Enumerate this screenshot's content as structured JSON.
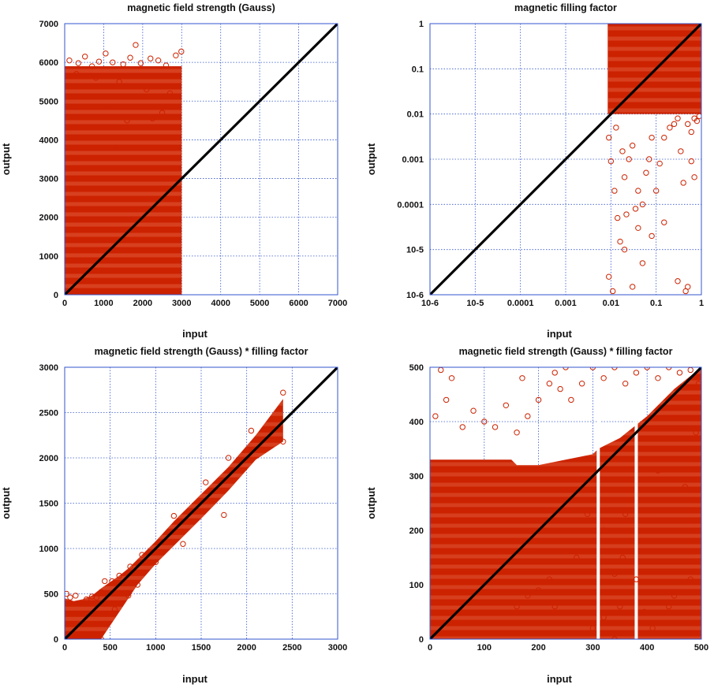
{
  "colors": {
    "marker": "#cc2200",
    "identity": "#000000",
    "grid": "#3355cc",
    "frame": "#3355cc"
  },
  "chart_data": [
    {
      "type": "scatter",
      "title": "magnetic field strength (Gauss)",
      "xlabel": "input",
      "ylabel": "output",
      "xlim": [
        0,
        7000
      ],
      "ylim": [
        0,
        7000
      ],
      "xticks": [
        0,
        1000,
        2000,
        3000,
        4000,
        5000,
        6000,
        7000
      ],
      "yticks": [
        0,
        1000,
        2000,
        3000,
        4000,
        5000,
        6000,
        7000
      ],
      "xtick_labels": [
        "0",
        "1000",
        "2000",
        "3000",
        "4000",
        "5000",
        "6000",
        "7000"
      ],
      "ytick_labels": [
        "0",
        "1000",
        "2000",
        "3000",
        "4000",
        "5000",
        "6000",
        "7000"
      ],
      "log": false,
      "grid": true,
      "identity_line": true,
      "dense_region": {
        "x": [
          0,
          3000
        ],
        "y": [
          0,
          5900
        ]
      },
      "series": [
        {
          "points": [
            [
              120,
              6050
            ],
            [
              350,
              5980
            ],
            [
              520,
              6150
            ],
            [
              700,
              5900
            ],
            [
              880,
              6020
            ],
            [
              1050,
              6230
            ],
            [
              1230,
              6000
            ],
            [
              1500,
              5950
            ],
            [
              1680,
              6120
            ],
            [
              1820,
              6450
            ],
            [
              1950,
              5980
            ],
            [
              2200,
              6100
            ],
            [
              2400,
              6050
            ],
            [
              2600,
              5920
            ],
            [
              2850,
              6180
            ],
            [
              2990,
              6280
            ],
            [
              300,
              5700
            ],
            [
              800,
              5600
            ],
            [
              1400,
              5500
            ],
            [
              2100,
              5300
            ],
            [
              2700,
              5200
            ],
            [
              1100,
              4850
            ],
            [
              1600,
              4500
            ],
            [
              2500,
              4700
            ],
            [
              2250,
              4550
            ],
            [
              1300,
              3800
            ]
          ]
        }
      ]
    },
    {
      "type": "scatter",
      "title": "magnetic filling factor",
      "xlabel": "input",
      "ylabel": "output",
      "xlim": [
        1e-06,
        1
      ],
      "ylim": [
        1e-06,
        1
      ],
      "xticks": [
        1e-06,
        1e-05,
        0.0001,
        0.001,
        0.01,
        0.1,
        1
      ],
      "yticks": [
        1e-06,
        1e-05,
        0.0001,
        0.001,
        0.01,
        0.1,
        1
      ],
      "xtick_labels": [
        "10-6",
        "10-5",
        "0.0001",
        "0.001",
        "0.01",
        "0.1",
        "1"
      ],
      "ytick_labels": [
        "10-6",
        "10-5",
        "0.0001",
        "0.001",
        "0.01",
        "0.1",
        "1"
      ],
      "log": true,
      "grid": true,
      "identity_line": true,
      "dense_region": {
        "x": [
          0.0085,
          1
        ],
        "y": [
          0.01,
          1
        ]
      },
      "series": [
        {
          "points": [
            [
              0.009,
              0.003
            ],
            [
              0.01,
              0.0009
            ],
            [
              0.012,
              0.0002
            ],
            [
              0.014,
              5e-05
            ],
            [
              0.016,
              1.5e-05
            ],
            [
              0.009,
              2.5e-06
            ],
            [
              0.011,
              1.2e-06
            ],
            [
              0.02,
              0.0004
            ],
            [
              0.025,
              0.001
            ],
            [
              0.03,
              0.002
            ],
            [
              0.035,
              8e-05
            ],
            [
              0.04,
              3e-05
            ],
            [
              0.05,
              5e-06
            ],
            [
              0.06,
              0.0005
            ],
            [
              0.07,
              0.001
            ],
            [
              0.08,
              0.003
            ],
            [
              0.1,
              0.0002
            ],
            [
              0.12,
              0.0008
            ],
            [
              0.15,
              0.003
            ],
            [
              0.2,
              0.005
            ],
            [
              0.25,
              0.006
            ],
            [
              0.3,
              0.008
            ],
            [
              0.35,
              0.0015
            ],
            [
              0.4,
              0.0003
            ],
            [
              0.5,
              0.006
            ],
            [
              0.6,
              0.004
            ],
            [
              0.7,
              0.008
            ],
            [
              0.8,
              0.007
            ],
            [
              0.9,
              0.009
            ],
            [
              0.02,
              1e-05
            ],
            [
              0.03,
              1.5e-06
            ],
            [
              0.05,
              0.0001
            ],
            [
              0.08,
              2e-05
            ],
            [
              0.15,
              4e-05
            ],
            [
              0.3,
              2e-06
            ],
            [
              0.45,
              1.2e-06
            ],
            [
              0.5,
              1.5e-06
            ],
            [
              0.013,
              0.005
            ],
            [
              0.018,
              0.0015
            ],
            [
              0.022,
              6e-05
            ],
            [
              0.04,
              0.0002
            ],
            [
              0.6,
              0.0009
            ],
            [
              0.7,
              0.0004
            ]
          ]
        }
      ]
    },
    {
      "type": "scatter",
      "title": "magnetic field strength (Gauss) * filling factor",
      "xlabel": "input",
      "ylabel": "output",
      "xlim": [
        0,
        3000
      ],
      "ylim": [
        0,
        3000
      ],
      "xticks": [
        0,
        500,
        1000,
        1500,
        2000,
        2500,
        3000
      ],
      "yticks": [
        0,
        500,
        1000,
        1500,
        2000,
        2500,
        3000
      ],
      "xtick_labels": [
        "0",
        "500",
        "1000",
        "1500",
        "2000",
        "2500",
        "3000"
      ],
      "ytick_labels": [
        "0",
        "500",
        "1000",
        "1500",
        "2000",
        "2500",
        "3000"
      ],
      "log": false,
      "grid": true,
      "identity_line": true,
      "band": {
        "x": [
          0,
          100,
          200,
          300,
          400,
          500,
          600,
          700,
          800,
          1000,
          1200,
          1500,
          1800,
          2100,
          2400
        ],
        "lower": [
          0,
          0,
          0,
          0,
          0,
          150,
          300,
          450,
          600,
          830,
          1030,
          1330,
          1640,
          1980,
          2180
        ],
        "upper": [
          450,
          420,
          440,
          480,
          560,
          630,
          700,
          780,
          880,
          1080,
          1300,
          1600,
          1900,
          2250,
          2650
        ]
      },
      "series": [
        {
          "points": [
            [
              20,
              500
            ],
            [
              60,
              460
            ],
            [
              120,
              480
            ],
            [
              240,
              440
            ],
            [
              300,
              470
            ],
            [
              350,
              460
            ],
            [
              400,
              520
            ],
            [
              440,
              640
            ],
            [
              520,
              640
            ],
            [
              600,
              700
            ],
            [
              720,
              800
            ],
            [
              850,
              930
            ],
            [
              1200,
              1360
            ],
            [
              1550,
              1730
            ],
            [
              1800,
              2000
            ],
            [
              2050,
              2300
            ],
            [
              2400,
              2720
            ],
            [
              2400,
              2180
            ],
            [
              1750,
              1370
            ],
            [
              1300,
              1050
            ],
            [
              1000,
              850
            ],
            [
              700,
              480
            ],
            [
              550,
              330
            ],
            [
              800,
              600
            ],
            [
              400,
              0
            ]
          ]
        }
      ]
    },
    {
      "type": "scatter",
      "title": "magnetic field strength (Gauss) * filling factor",
      "xlabel": "input",
      "ylabel": "output",
      "xlim": [
        0,
        500
      ],
      "ylim": [
        0,
        500
      ],
      "xticks": [
        0,
        100,
        200,
        300,
        400,
        500
      ],
      "yticks": [
        0,
        100,
        200,
        300,
        400,
        500
      ],
      "xtick_labels": [
        "0",
        "100",
        "200",
        "300",
        "400",
        "500"
      ],
      "ytick_labels": [
        "0",
        "100",
        "200",
        "300",
        "400",
        "500"
      ],
      "log": false,
      "grid": true,
      "identity_line": true,
      "band": {
        "x": [
          0,
          50,
          100,
          150,
          160,
          200,
          250,
          300,
          310,
          350,
          400,
          450,
          500
        ],
        "lower": [
          0,
          0,
          0,
          0,
          0,
          0,
          0,
          0,
          0,
          0,
          0,
          0,
          0
        ],
        "upper": [
          330,
          330,
          330,
          330,
          320,
          320,
          330,
          340,
          350,
          370,
          410,
          460,
          500
        ]
      },
      "gaps_x": [
        310,
        380
      ],
      "series": [
        {
          "points": [
            [
              10,
              410
            ],
            [
              20,
              495
            ],
            [
              30,
              440
            ],
            [
              40,
              480
            ],
            [
              60,
              390
            ],
            [
              80,
              420
            ],
            [
              100,
              400
            ],
            [
              120,
              390
            ],
            [
              140,
              430
            ],
            [
              160,
              380
            ],
            [
              180,
              410
            ],
            [
              200,
              440
            ],
            [
              220,
              470
            ],
            [
              240,
              460
            ],
            [
              250,
              500
            ],
            [
              260,
              440
            ],
            [
              280,
              470
            ],
            [
              300,
              500
            ],
            [
              320,
              480
            ],
            [
              340,
              500
            ],
            [
              360,
              470
            ],
            [
              380,
              490
            ],
            [
              400,
              500
            ],
            [
              420,
              480
            ],
            [
              440,
              500
            ],
            [
              460,
              490
            ],
            [
              480,
              495
            ],
            [
              495,
              470
            ],
            [
              380,
              110
            ],
            [
              350,
              60
            ],
            [
              340,
              0
            ],
            [
              320,
              40
            ],
            [
              300,
              20
            ],
            [
              360,
              230
            ],
            [
              470,
              280
            ],
            [
              460,
              180
            ],
            [
              450,
              80
            ],
            [
              420,
              310
            ],
            [
              440,
              60
            ],
            [
              480,
              110
            ],
            [
              395,
              50
            ],
            [
              410,
              20
            ],
            [
              490,
              380
            ],
            [
              200,
              90
            ],
            [
              220,
              110
            ],
            [
              180,
              80
            ],
            [
              160,
              60
            ],
            [
              170,
              480
            ],
            [
              230,
              490
            ],
            [
              270,
              150
            ],
            [
              290,
              230
            ],
            [
              320,
              200
            ],
            [
              340,
              120
            ],
            [
              355,
              150
            ],
            [
              230,
              60
            ],
            [
              250,
              30
            ]
          ]
        }
      ]
    }
  ]
}
